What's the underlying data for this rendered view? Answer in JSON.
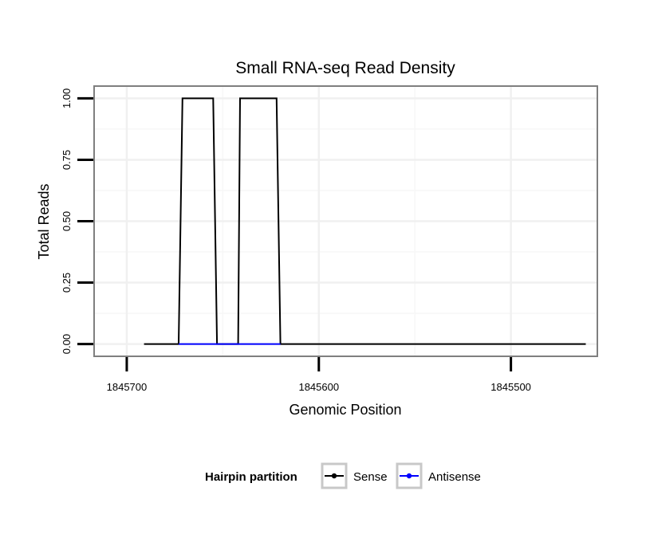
{
  "chart_data": {
    "type": "line",
    "title": "Small RNA-seq Read Density",
    "xlabel": "Genomic Position",
    "ylabel": "Total Reads",
    "x_reversed": true,
    "xlim": [
      1845717,
      1845455
    ],
    "ylim": [
      -0.05,
      1.05
    ],
    "x_ticks": [
      1845700,
      1845600,
      1845500
    ],
    "x_tick_labels": [
      "1845700",
      "1845600",
      "1845500"
    ],
    "y_ticks": [
      0,
      0.25,
      0.5,
      0.75,
      1
    ],
    "y_tick_labels": [
      "0.00",
      "0.25",
      "0.50",
      "0.75",
      "1.00"
    ],
    "grid": true,
    "legend_position": "bottom",
    "legend": {
      "title": "Hairpin partition",
      "entries": [
        "Sense",
        "Antisense"
      ]
    },
    "series": [
      {
        "name": "Sense",
        "color": "#000000",
        "x": [
          1845691,
          1845673,
          1845671,
          1845655,
          1845653,
          1845642,
          1845641,
          1845622,
          1845620,
          1845461
        ],
        "values": [
          0,
          0,
          1,
          1,
          0,
          0,
          1,
          1,
          0,
          0
        ]
      },
      {
        "name": "Antisense",
        "color": "#0000ff",
        "x": [
          1845673,
          1845653,
          1845642,
          1845620
        ],
        "values": [
          0,
          0,
          0,
          0
        ]
      }
    ]
  }
}
